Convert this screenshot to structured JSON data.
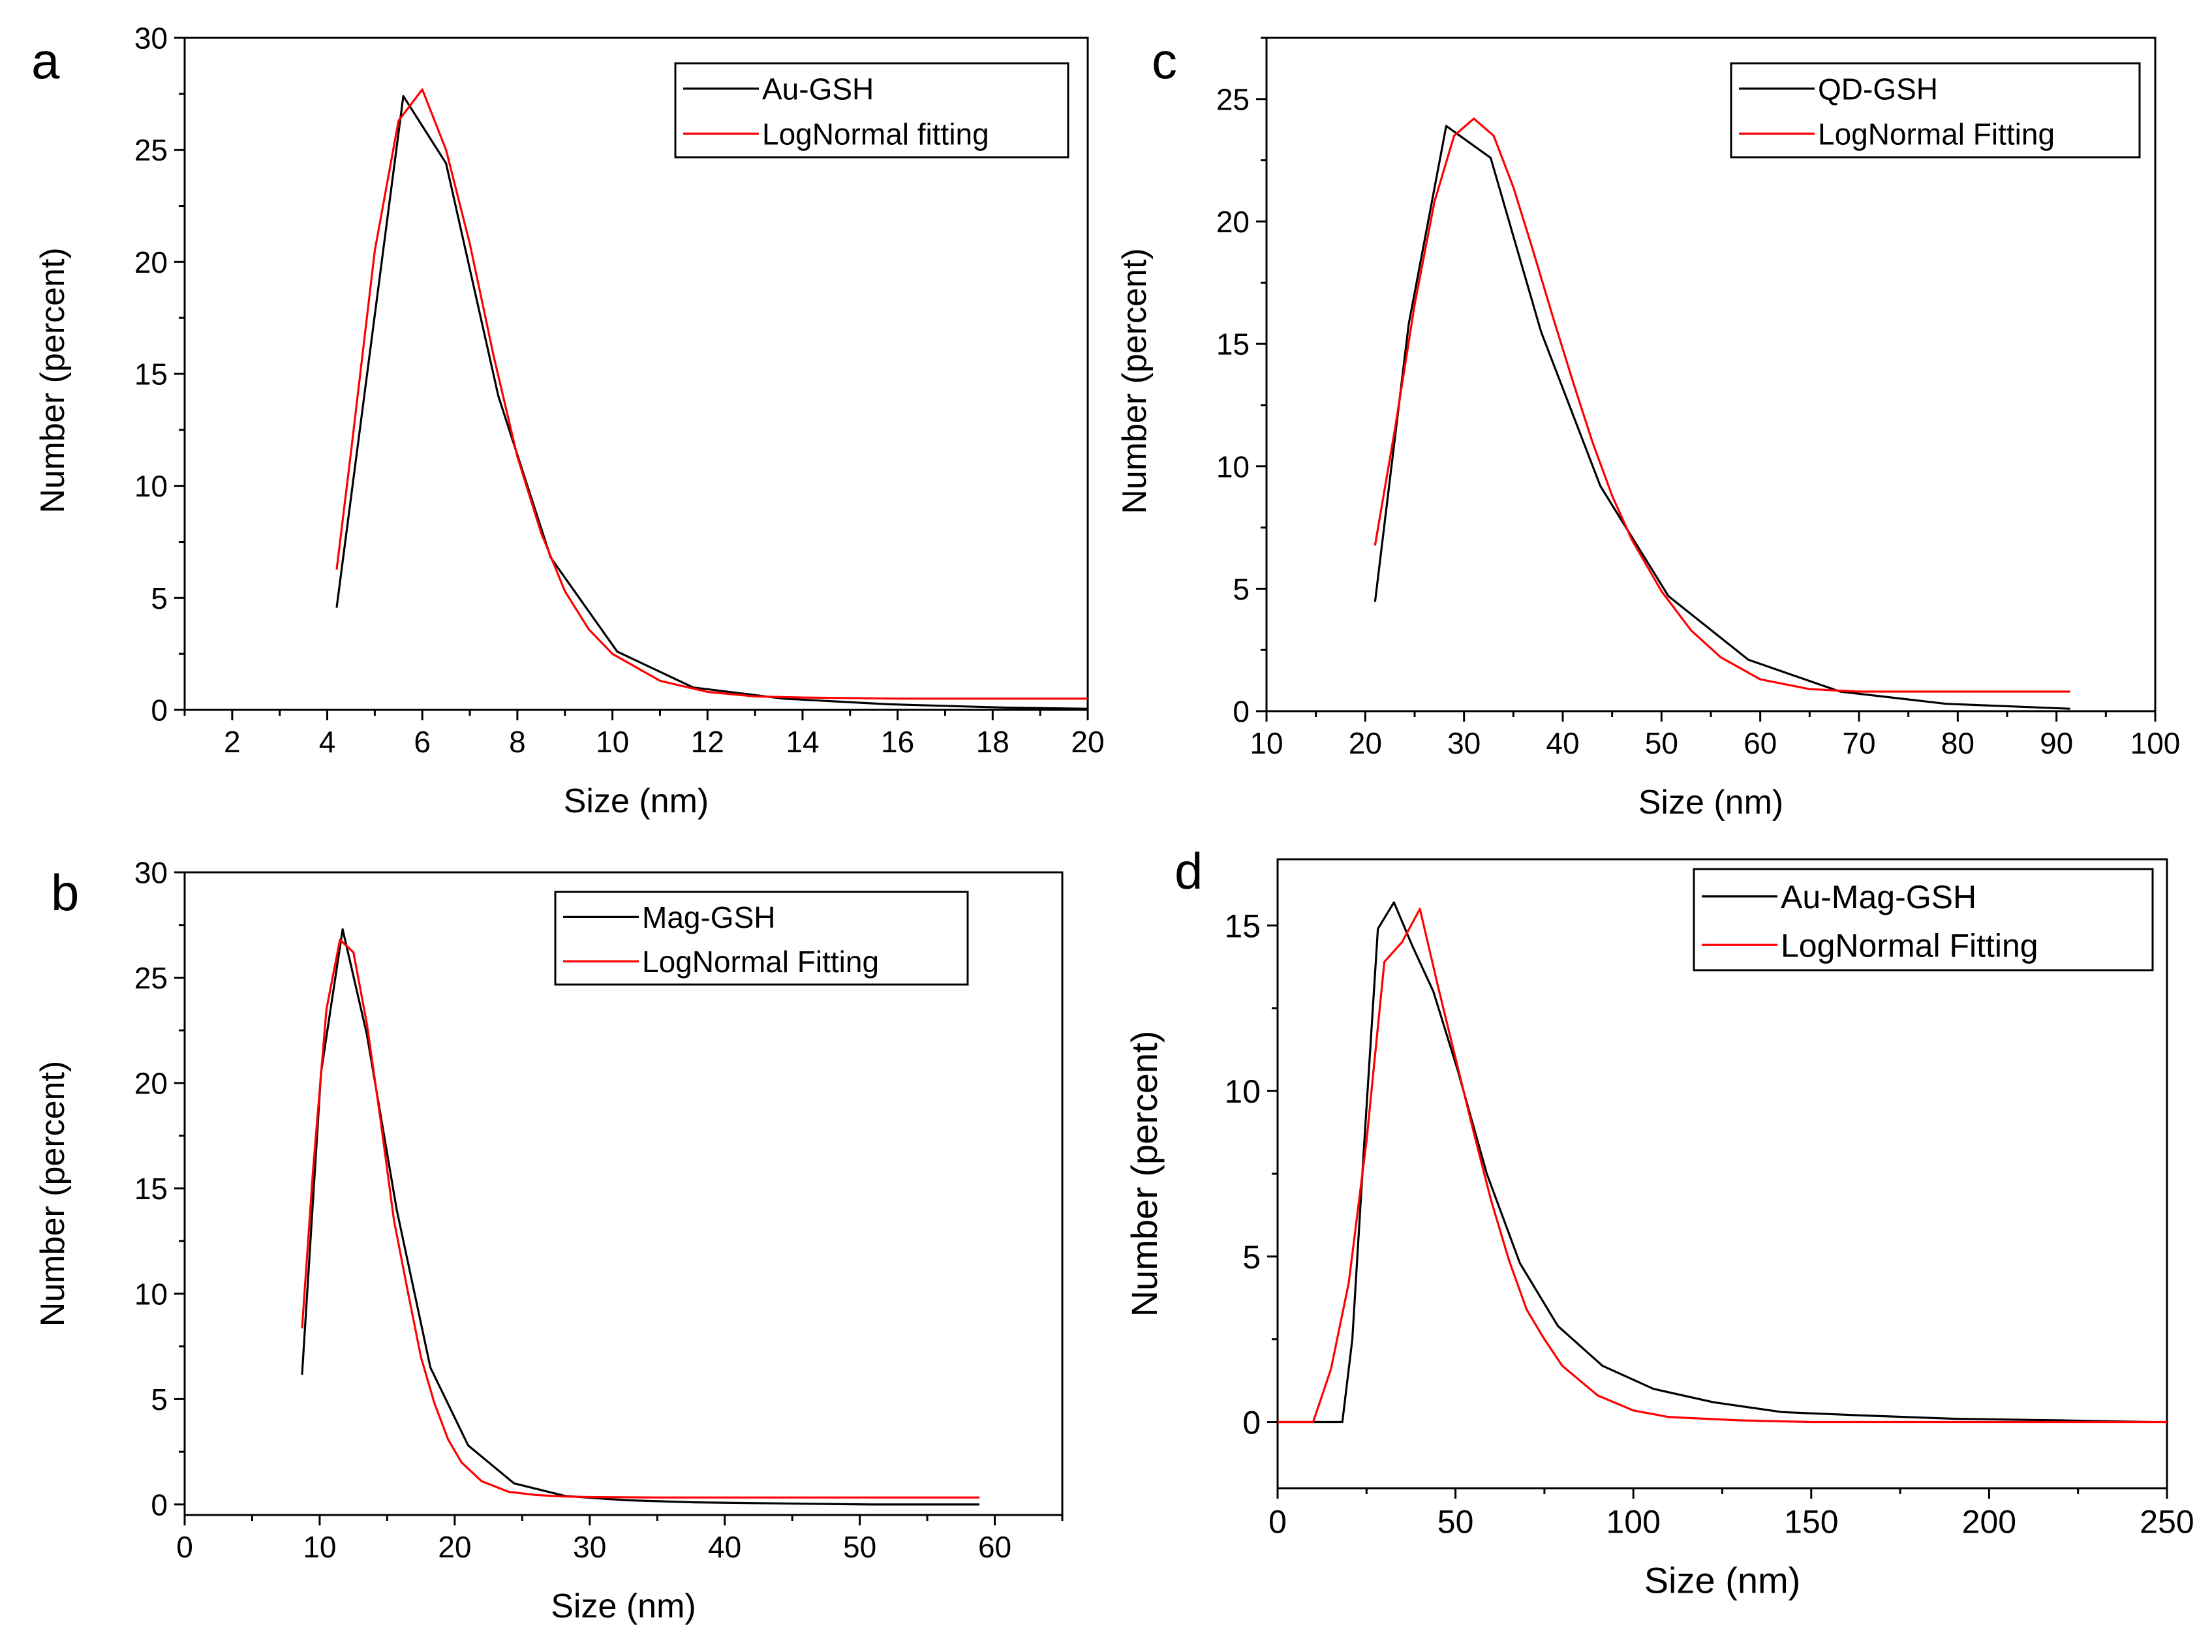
{
  "chart_data": [
    {
      "panel": "a",
      "type": "line",
      "xlabel": "Size (nm)",
      "ylabel": "Number (percent)",
      "xlim": [
        1,
        20
      ],
      "ylim": [
        0,
        30
      ],
      "xticks": [
        2,
        4,
        6,
        8,
        10,
        12,
        14,
        16,
        18,
        20
      ],
      "yticks": [
        0,
        5,
        10,
        15,
        20,
        25,
        30
      ],
      "legend_position": "top-right",
      "series": [
        {
          "name": "Au-GSH",
          "color": "#000000",
          "x": [
            4.2,
            5.6,
            6.5,
            7.6,
            8.7,
            10.1,
            11.7,
            13.6,
            15.8,
            18.3,
            20
          ],
          "y": [
            4.6,
            27.4,
            24.4,
            14.0,
            6.8,
            2.6,
            1.0,
            0.5,
            0.25,
            0.1,
            0.05
          ]
        },
        {
          "name": "LogNormal fitting",
          "color": "#ff0000",
          "x": [
            4.2,
            4.5,
            5.0,
            5.5,
            6.0,
            6.5,
            7.0,
            7.5,
            8.0,
            8.5,
            9.0,
            9.5,
            10.0,
            11.0,
            12.0,
            13.0,
            14.0,
            16.0,
            18.0,
            20.0
          ],
          "y": [
            6.3,
            11.5,
            20.5,
            26.3,
            27.7,
            25.0,
            20.8,
            15.8,
            11.3,
            7.9,
            5.3,
            3.6,
            2.5,
            1.3,
            0.8,
            0.6,
            0.55,
            0.5,
            0.5,
            0.5
          ]
        }
      ]
    },
    {
      "panel": "b",
      "type": "line",
      "xlabel": "Size (nm)",
      "ylabel": "Number (percent)",
      "xlim": [
        0,
        65
      ],
      "ylim": [
        -0.5,
        30
      ],
      "xticks": [
        0,
        10,
        20,
        30,
        40,
        50,
        60
      ],
      "yticks": [
        0,
        5,
        10,
        15,
        20,
        25,
        30
      ],
      "legend_position": "top-right",
      "series": [
        {
          "name": "Mag-GSH",
          "color": "#000000",
          "x": [
            8.7,
            10.1,
            11.7,
            13.5,
            15.7,
            18.2,
            21.0,
            24.4,
            28.2,
            32.7,
            37.8,
            43.8,
            50.7,
            58.8
          ],
          "y": [
            6.2,
            20.5,
            27.3,
            22.3,
            14.0,
            6.5,
            2.8,
            1.0,
            0.4,
            0.2,
            0.1,
            0.05,
            0.0,
            0.0
          ]
        },
        {
          "name": "LogNormal Fitting",
          "color": "#ff0000",
          "x": [
            8.7,
            9.5,
            10.5,
            11.5,
            12.5,
            13.5,
            14.5,
            15.5,
            16.5,
            17.5,
            18.5,
            19.5,
            20.5,
            22,
            24,
            26,
            28,
            30,
            35,
            40,
            50,
            58.8
          ],
          "y": [
            8.4,
            15.8,
            23.5,
            26.8,
            26.2,
            22.8,
            18.3,
            13.5,
            10.2,
            7.0,
            4.8,
            3.1,
            2.0,
            1.1,
            0.6,
            0.45,
            0.38,
            0.35,
            0.33,
            0.33,
            0.33,
            0.33
          ]
        }
      ]
    },
    {
      "panel": "c",
      "type": "line",
      "xlabel": "Size (nm)",
      "ylabel": "Number (percent)",
      "xlim": [
        10,
        100
      ],
      "ylim": [
        0,
        27.5
      ],
      "xticks": [
        10,
        20,
        30,
        40,
        50,
        60,
        70,
        80,
        90,
        100
      ],
      "yticks": [
        0,
        5,
        10,
        15,
        20,
        25
      ],
      "legend_position": "top-right",
      "series": [
        {
          "name": "QD-GSH",
          "color": "#000000",
          "x": [
            21.0,
            24.4,
            28.2,
            32.7,
            37.8,
            43.8,
            50.7,
            58.8,
            68.1,
            78.8,
            91.3
          ],
          "y": [
            4.5,
            15.8,
            23.9,
            22.6,
            15.5,
            9.2,
            4.7,
            2.1,
            0.8,
            0.3,
            0.1
          ]
        },
        {
          "name": "LogNormal Fitting",
          "color": "#ff0000",
          "x": [
            21.0,
            23,
            25,
            27,
            29,
            31,
            33,
            35,
            37,
            39,
            41,
            43,
            45,
            47,
            50,
            53,
            56,
            60,
            65,
            70,
            80,
            91.3
          ],
          "y": [
            6.8,
            11.5,
            16.6,
            20.8,
            23.5,
            24.2,
            23.5,
            21.4,
            18.8,
            16.1,
            13.5,
            11.0,
            8.8,
            7.0,
            4.9,
            3.3,
            2.2,
            1.3,
            0.9,
            0.8,
            0.8,
            0.8
          ]
        }
      ]
    },
    {
      "panel": "d",
      "type": "line",
      "xlabel": "Size (nm)",
      "ylabel": "Number (percent)",
      "xlim": [
        0,
        250
      ],
      "ylim": [
        -2,
        17
      ],
      "xticks": [
        0,
        50,
        100,
        150,
        200,
        250
      ],
      "yticks": [
        0,
        5,
        10,
        15
      ],
      "legend_position": "top-right",
      "series": [
        {
          "name": "Au-Mag-GSH",
          "color": "#000000",
          "x": [
            0,
            10,
            18.2,
            21.0,
            24.4,
            28.2,
            32.7,
            37.8,
            43.8,
            50.7,
            58.8,
            68.1,
            78.8,
            91.3,
            105.7,
            122.4,
            141.8,
            164.2,
            190.1,
            220.2,
            245
          ],
          "y": [
            0,
            0,
            0,
            2.5,
            8.5,
            14.9,
            15.7,
            14.4,
            13.0,
            10.6,
            7.5,
            4.8,
            2.9,
            1.7,
            1.0,
            0.6,
            0.3,
            0.2,
            0.1,
            0.05,
            0.0
          ]
        },
        {
          "name": "LogNormal Fitting",
          "color": "#ff0000",
          "x": [
            0,
            10,
            15,
            20,
            25,
            30,
            35,
            40,
            45,
            50,
            55,
            60,
            65,
            70,
            75,
            80,
            90,
            100,
            110,
            130,
            150,
            200,
            250
          ],
          "y": [
            0,
            0,
            1.6,
            4.2,
            8.5,
            13.9,
            14.5,
            15.5,
            13.2,
            11.0,
            8.8,
            6.7,
            4.9,
            3.4,
            2.5,
            1.7,
            0.8,
            0.35,
            0.15,
            0.05,
            0.0,
            0.0,
            0.0
          ]
        }
      ]
    }
  ]
}
